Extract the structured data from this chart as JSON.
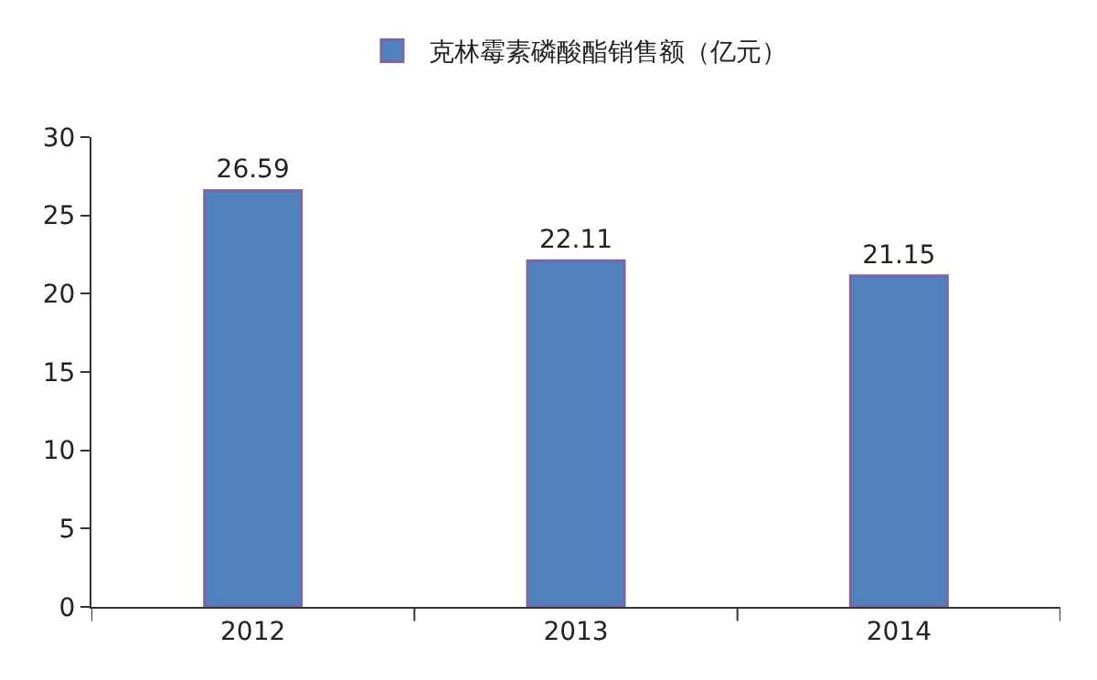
{
  "chart_data": {
    "type": "bar",
    "categories": [
      "2012",
      "2013",
      "2014"
    ],
    "series": [
      {
        "name": "克林霉素磷酸酯销售额（亿元）",
        "color": "#4f81bd",
        "values": [
          26.59,
          22.11,
          21.15
        ]
      }
    ],
    "ylim": [
      0,
      30
    ],
    "yticks": [
      0,
      5,
      10,
      15,
      20,
      25,
      30
    ],
    "legend": "top",
    "data_labels": true
  }
}
